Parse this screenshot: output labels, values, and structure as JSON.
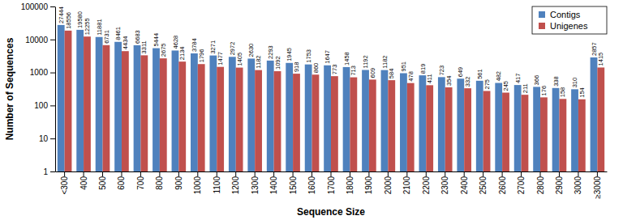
{
  "chart_data": {
    "type": "bar",
    "x_label": "Sequence Size",
    "y_label": "Number of Sequences",
    "categories": [
      "<300",
      "400",
      "500",
      "600",
      "700",
      "800",
      "900",
      "1000",
      "1100",
      "1200",
      "1300",
      "1400",
      "1500",
      "1600",
      "1700",
      "1800",
      "1900",
      "2000",
      "2100",
      "2200",
      "2300",
      "2400",
      "2500",
      "2600",
      "2700",
      "2800",
      "2900",
      "3000",
      "≥3000"
    ],
    "series": [
      {
        "name": "Contigs",
        "color": "#4f81bd",
        "values": [
          27444,
          19580,
          11881,
          8461,
          6683,
          5444,
          4628,
          3784,
          3271,
          2972,
          2630,
          2293,
          1945,
          1753,
          1647,
          1458,
          1192,
          1182,
          951,
          819,
          723,
          649,
          561,
          482,
          417,
          366,
          338,
          310,
          2857
        ]
      },
      {
        "name": "Unigenes",
        "color": "#c0504d",
        "values": [
          18556,
          12255,
          6731,
          4434,
          3311,
          2675,
          2134,
          1796,
          1477,
          1405,
          1182,
          1092,
          918,
          860,
          773,
          713,
          609,
          584,
          478,
          411,
          354,
          332,
          275,
          245,
          211,
          176,
          158,
          154,
          1415
        ]
      }
    ],
    "log": "y",
    "ylim": [
      1,
      100000
    ],
    "yticks": [
      1,
      10,
      100,
      1000,
      10000,
      100000
    ],
    "grid": false,
    "data_labels": true,
    "legend": "upper right"
  }
}
